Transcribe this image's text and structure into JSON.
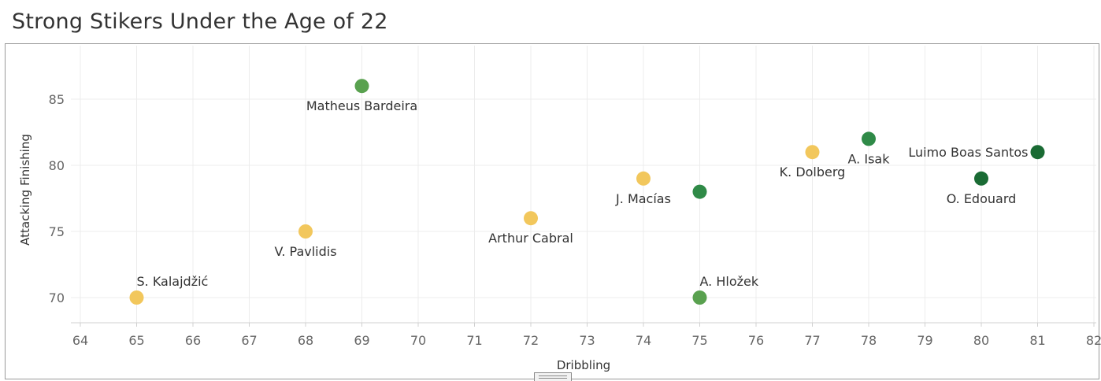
{
  "chart_data": {
    "type": "scatter",
    "title": "Strong Stikers Under the Age of 22",
    "xlabel": "Dribbling",
    "ylabel": "Attacking Finishing",
    "xlim": [
      64,
      82
    ],
    "ylim": [
      68,
      88
    ],
    "x_ticks": [
      64,
      65,
      66,
      67,
      68,
      69,
      70,
      71,
      72,
      73,
      74,
      75,
      76,
      77,
      78,
      79,
      80,
      81,
      82
    ],
    "y_ticks": [
      70,
      75,
      80,
      85
    ],
    "grid": true,
    "colors": {
      "yellow": "#f2c75c",
      "light_green": "#59a14f",
      "mid_green": "#2f8a47",
      "dark_green": "#1a6b34"
    },
    "points": [
      {
        "label": "S. Kalajdžić",
        "x": 65,
        "y": 70,
        "color": "#f2c75c",
        "label_pos": "above"
      },
      {
        "label": "V. Pavlidis",
        "x": 68,
        "y": 75,
        "color": "#f2c75c",
        "label_pos": "below"
      },
      {
        "label": "Matheus Bardeira",
        "x": 69,
        "y": 86,
        "color": "#59a14f",
        "label_pos": "below"
      },
      {
        "label": "Arthur Cabral",
        "x": 72,
        "y": 76,
        "color": "#f2c75c",
        "label_pos": "below"
      },
      {
        "label": "J. Macías",
        "x": 74,
        "y": 79,
        "color": "#f2c75c",
        "label_pos": "below"
      },
      {
        "label": "",
        "x": 75,
        "y": 78,
        "color": "#2f8a47",
        "label_pos": "none"
      },
      {
        "label": "A. Hložek",
        "x": 75,
        "y": 70,
        "color": "#59a14f",
        "label_pos": "above"
      },
      {
        "label": "K. Dolberg",
        "x": 77,
        "y": 81,
        "color": "#f2c75c",
        "label_pos": "below"
      },
      {
        "label": "A. Isak",
        "x": 78,
        "y": 82,
        "color": "#2f8a47",
        "label_pos": "below"
      },
      {
        "label": "O. Edouard",
        "x": 80,
        "y": 79,
        "color": "#1a6b34",
        "label_pos": "below"
      },
      {
        "label": "Luimo Boas Santos",
        "x": 81,
        "y": 81,
        "color": "#1a6b34",
        "label_pos": "left"
      }
    ]
  }
}
